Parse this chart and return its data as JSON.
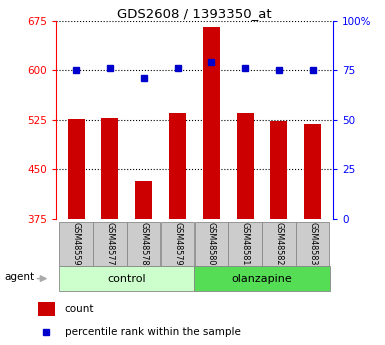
{
  "title": "GDS2608 / 1393350_at",
  "samples": [
    "GSM48559",
    "GSM48577",
    "GSM48578",
    "GSM48579",
    "GSM48580",
    "GSM48581",
    "GSM48582",
    "GSM48583"
  ],
  "counts": [
    527,
    528,
    432,
    535,
    665,
    535,
    524,
    519
  ],
  "percentile_ranks": [
    75,
    76,
    71,
    76,
    79,
    76,
    75,
    75
  ],
  "groups": [
    "control",
    "control",
    "control",
    "control",
    "olanzapine",
    "olanzapine",
    "olanzapine",
    "olanzapine"
  ],
  "left_ylim": [
    375,
    675
  ],
  "right_ylim": [
    0,
    100
  ],
  "left_yticks": [
    375,
    450,
    525,
    600,
    675
  ],
  "right_yticks": [
    0,
    25,
    50,
    75,
    100
  ],
  "right_ytick_labels": [
    "0",
    "25",
    "50",
    "75",
    "100%"
  ],
  "bar_color": "#cc0000",
  "dot_color": "#0000cc",
  "bar_width": 0.5,
  "control_color": "#ccffcc",
  "olanzapine_color": "#55dd55",
  "tick_label_bg": "#cccccc",
  "count_label": "count",
  "percentile_label": "percentile rank within the sample",
  "agent_label": "agent"
}
